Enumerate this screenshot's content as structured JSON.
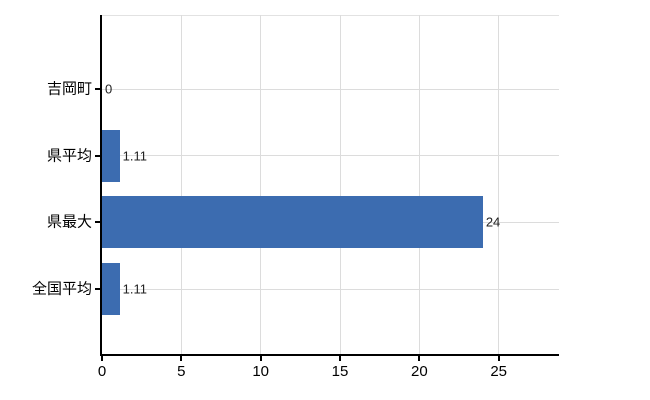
{
  "chart_data": {
    "type": "bar",
    "orientation": "horizontal",
    "categories": [
      "吉岡町",
      "県平均",
      "県最大",
      "全国平均"
    ],
    "values": [
      0,
      1.11,
      24,
      1.11
    ],
    "value_labels": [
      "0",
      "1.11",
      "24",
      "1.11"
    ],
    "x_ticks": [
      0,
      5,
      10,
      15,
      20,
      25
    ],
    "x_tick_labels": [
      "0",
      "5",
      "10",
      "15",
      "20",
      "25"
    ],
    "xlim": [
      0,
      28.8
    ],
    "grid": true,
    "legend": false,
    "colors": {
      "bar": "#3c6cb0",
      "grid": "#dcdcdc",
      "axis": "#000000",
      "value_label": "#222222",
      "tick_label": "#000000"
    }
  }
}
